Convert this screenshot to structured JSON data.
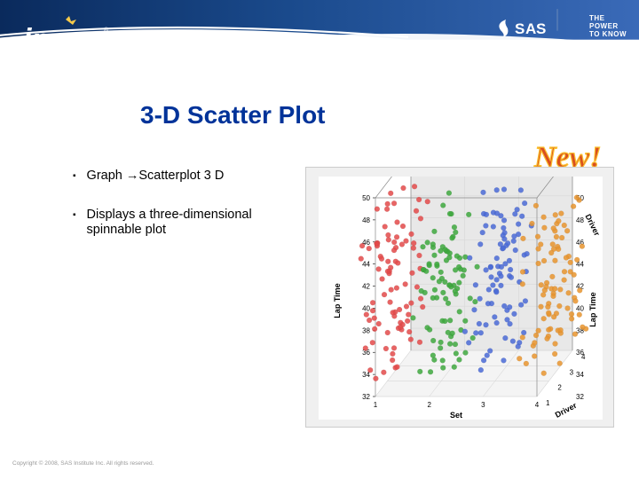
{
  "header": {
    "jmp_logo_text": "jmp",
    "sas_logo_text": "SAS",
    "tagline_line1": "THE",
    "tagline_line2": "POWER",
    "tagline_line3": "TO KNOW",
    "bg_gradient_start": "#0a2a5c",
    "bg_gradient_mid": "#1a4a8c",
    "bg_gradient_end": "#3a6ab8",
    "swoosh_color": "#ffffff",
    "star_color": "#f5c94a"
  },
  "title": "3-D Scatter Plot",
  "title_color": "#003399",
  "title_fontsize": 28,
  "bullets": [
    {
      "pre": "Graph ",
      "arrow": "→",
      "post": "Scatterplot 3 D"
    },
    {
      "pre": "Displays a three-dimensional spinnable plot",
      "arrow": "",
      "post": ""
    }
  ],
  "new_badge": {
    "text": "New!",
    "fill_color": "#d94f1f",
    "stroke_color": "#fbc02d"
  },
  "chart": {
    "type": "scatter3d",
    "top_axis_label": "Set",
    "right_axis_label": "Driver",
    "bottom_x_label": "Set",
    "bottom_z_label": "Driver",
    "left_axis_label": "Lap Time",
    "y_ticks": [
      32,
      34,
      36,
      38,
      40,
      42,
      44,
      46,
      48,
      50
    ],
    "x_ticks": [
      1,
      2,
      3,
      4
    ],
    "z_ticks": [
      1,
      2,
      3,
      4
    ],
    "ylim": [
      32,
      50
    ],
    "xlim": [
      1,
      4
    ],
    "zlim": [
      1,
      4
    ],
    "background_color": "#ffffff",
    "panel_bg": "#f0f0f0",
    "grid_color": "#d8d8d8",
    "floor_back_color": "#e8e8e8",
    "marker_size": 3.0,
    "marker_opacity": 0.85,
    "clusters": [
      {
        "set": 1,
        "color": "#e34a4a",
        "n_points": 90,
        "y_mean": 40,
        "y_spread": 7
      },
      {
        "set": 2,
        "color": "#3ea83e",
        "n_points": 90,
        "y_mean": 39,
        "y_spread": 6
      },
      {
        "set": 3,
        "color": "#4a6ad6",
        "n_points": 90,
        "y_mean": 40,
        "y_spread": 7
      },
      {
        "set": 4,
        "color": "#e8942e",
        "n_points": 90,
        "y_mean": 40,
        "y_spread": 6
      }
    ]
  },
  "copyright": "Copyright © 2008, SAS Institute Inc. All rights reserved."
}
